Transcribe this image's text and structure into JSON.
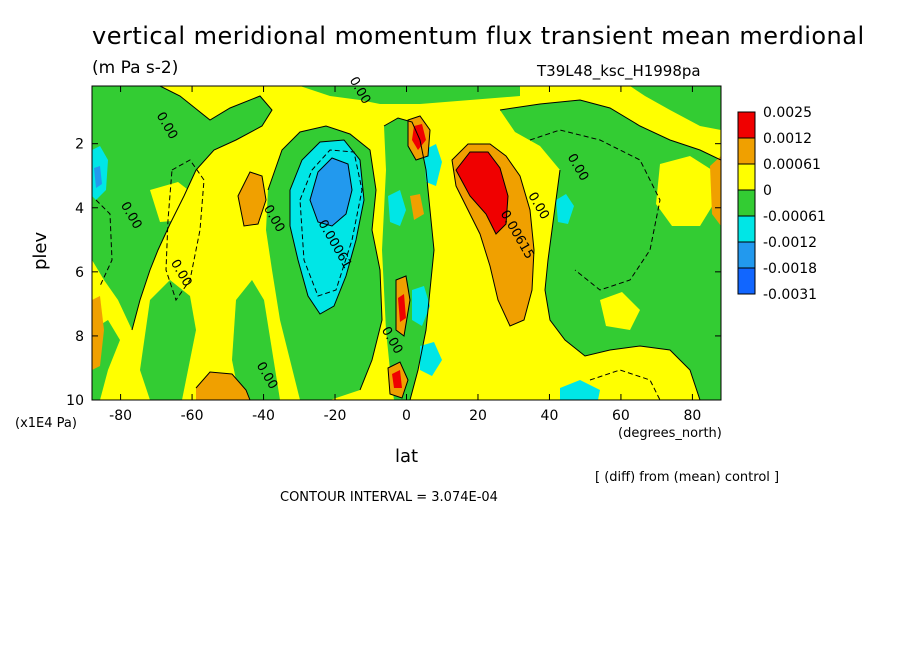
{
  "title": "vertical meridional momentum flux transient mean merdional",
  "units": "(m Pa s-2)",
  "run_id": "T39L48_ksc_H1998pa",
  "diff_note": "[ (diff) from (mean) control ]",
  "contour_interval": "CONTOUR INTERVAL = 3.074E-04",
  "chart_data": {
    "type": "heatmap",
    "title": "vertical meridional momentum flux transient mean merdional",
    "xlabel": "lat",
    "xunit": "(degrees_north)",
    "ylabel": "plev",
    "yunit": "(x1E4 Pa)",
    "xlim": [
      -88,
      88
    ],
    "ylim": [
      10,
      0.2
    ],
    "x_ticks": [
      -80,
      -60,
      -40,
      -20,
      0,
      20,
      40,
      60,
      80
    ],
    "x_tick_labels": [
      "-80",
      "-60",
      "-40",
      "-20",
      "0",
      "20",
      "40",
      "60",
      "80"
    ],
    "y_ticks": [
      2,
      4,
      6,
      8,
      10
    ],
    "y_tick_labels": [
      "2",
      "4",
      "6",
      "8",
      "10"
    ],
    "legend": {
      "placement": "right",
      "levels": [
        "0.0025",
        "0.0012",
        "0.00061",
        "0",
        "-0.00061",
        "-0.0012",
        "-0.0018",
        "-0.0031"
      ],
      "colors": [
        "#ff0000",
        "#ffa500",
        "#ffff00",
        "#00cc00",
        "#00ff00",
        "#00ffff",
        "#00aaff",
        "#0066ff"
      ],
      "fill_colors": [
        "#f00000",
        "#f0a000",
        "#ffff00",
        "#33cc33",
        "#00e6e6",
        "#2299ee",
        "#1166ff"
      ]
    },
    "contour_labels": [
      {
        "text": "0.00",
        "lat": -68,
        "plev": 1.5
      },
      {
        "text": "0.00",
        "lat": -78,
        "plev": 4.3
      },
      {
        "text": "0.00",
        "lat": -64,
        "plev": 6.1
      },
      {
        "text": "0.00",
        "lat": -38,
        "plev": 4.4
      },
      {
        "text": "0.00",
        "lat": -40,
        "plev": 9.3
      },
      {
        "text": "0.00061",
        "lat": -21,
        "plev": 5.2
      },
      {
        "text": "0.00",
        "lat": -5,
        "plev": 8.2
      },
      {
        "text": "0.00615",
        "lat": 30,
        "plev": 4.9
      },
      {
        "text": "0.00",
        "lat": 36,
        "plev": 4.0
      },
      {
        "text": "0.00",
        "lat": 47,
        "plev": 2.8
      },
      {
        "text": "0.00",
        "lat": -14,
        "plev": 0.4
      }
    ],
    "regions": [
      {
        "level": "0",
        "color": "#ffff00",
        "desc": "background positive"
      },
      {
        "level": "-0.00061",
        "color": "#33cc33"
      },
      {
        "level": "-0.0012",
        "color": "#00e6e6"
      },
      {
        "level": "-0.0018",
        "color": "#2299ee"
      },
      {
        "level": "0.00061",
        "color": "#f0a000"
      },
      {
        "level": "0.0012",
        "color": "#f00000"
      }
    ]
  }
}
